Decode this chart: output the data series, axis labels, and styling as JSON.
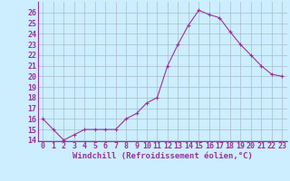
{
  "x": [
    0,
    1,
    2,
    3,
    4,
    5,
    6,
    7,
    8,
    9,
    10,
    11,
    12,
    13,
    14,
    15,
    16,
    17,
    18,
    19,
    20,
    21,
    22,
    23
  ],
  "y": [
    16,
    15,
    14,
    14.5,
    15,
    15,
    15,
    15,
    16,
    16.5,
    17.5,
    18,
    21,
    23,
    24.8,
    26.2,
    25.8,
    25.5,
    24.2,
    23,
    22,
    21,
    20.2,
    20
  ],
  "line_color": "#993399",
  "marker_color": "#993399",
  "bg_color": "#cceeff",
  "grid_color": "#aabbcc",
  "xlabel": "Windchill (Refroidissement éolien,°C)",
  "xlabel_color": "#993399",
  "xlabel_fontsize": 6.5,
  "tick_color": "#993399",
  "tick_fontsize": 6.0,
  "ylim_min": 14,
  "ylim_max": 27,
  "xlim_min": -0.5,
  "xlim_max": 23.5,
  "yticks": [
    14,
    15,
    16,
    17,
    18,
    19,
    20,
    21,
    22,
    23,
    24,
    25,
    26
  ],
  "xticks": [
    0,
    1,
    2,
    3,
    4,
    5,
    6,
    7,
    8,
    9,
    10,
    11,
    12,
    13,
    14,
    15,
    16,
    17,
    18,
    19,
    20,
    21,
    22,
    23
  ],
  "spine_color": "#993399",
  "linewidth": 0.8,
  "markersize": 3.0,
  "markeredgewidth": 0.8
}
